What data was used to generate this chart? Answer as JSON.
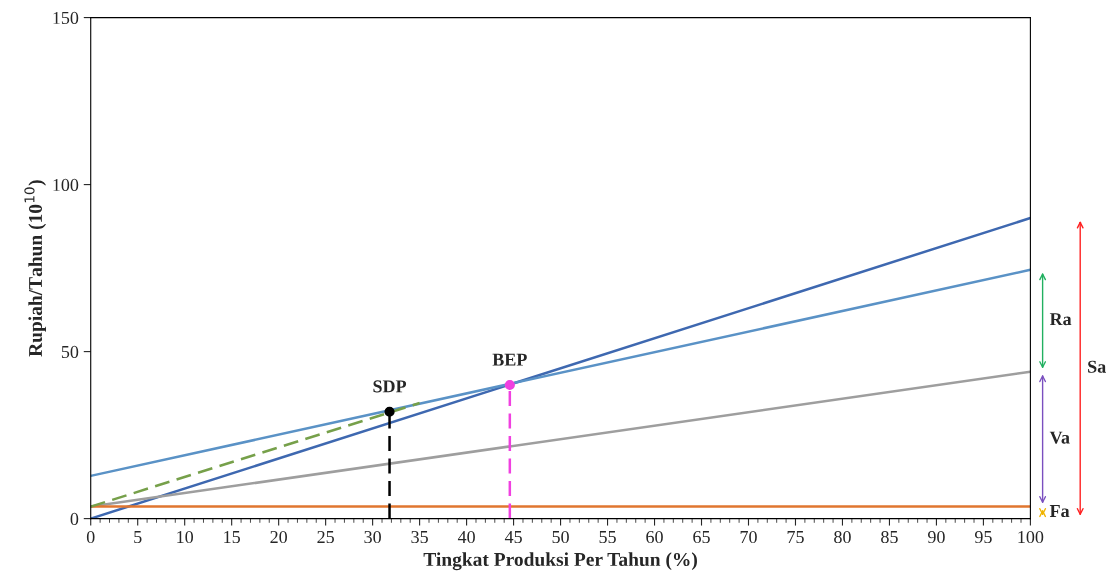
{
  "chart_data": {
    "type": "line",
    "xlabel": "Tingkat Produksi Per Tahun (%)",
    "ylabel": "Rupiah/Tahun (10$^{10}$)",
    "xlim": [
      0,
      100
    ],
    "ylim": [
      0,
      150
    ],
    "xticks": [
      0,
      5,
      10,
      15,
      20,
      25,
      30,
      35,
      40,
      45,
      50,
      55,
      60,
      65,
      70,
      75,
      80,
      85,
      90,
      95,
      100
    ],
    "yticks": [
      0,
      50,
      100,
      150
    ],
    "grid": false,
    "legend": false,
    "series": [
      {
        "color": "#3e68b0",
        "x": [
          0,
          100
        ],
        "values": [
          0,
          90
        ]
      },
      {
        "color": "#5a92c6",
        "x": [
          0,
          100
        ],
        "values": [
          12.8,
          74.5
        ]
      },
      {
        "color": "#9e9e9e",
        "x": [
          0,
          100
        ],
        "values": [
          3.6,
          44
        ]
      },
      {
        "color": "#e0762f",
        "x": [
          0,
          100
        ],
        "values": [
          3.6,
          3.6
        ]
      },
      {
        "color": "#76a04a",
        "line_style": "dashed",
        "x": [
          0,
          35
        ],
        "values": [
          3.6,
          34.6
        ]
      },
      {
        "color": "#000000",
        "line_style": "dashed",
        "x": [
          31.8,
          31.8
        ],
        "values": [
          0,
          32
        ]
      },
      {
        "color": "#f040e0",
        "line_style": "dashed",
        "x": [
          44.6,
          44.6
        ],
        "values": [
          0,
          40
        ]
      },
      {
        "type": "scatter",
        "color": "#000000",
        "marker": "circle",
        "x": [
          31.8
        ],
        "values": [
          32
        ]
      },
      {
        "type": "scatter",
        "color": "#f040e0",
        "marker": "circle",
        "x": [
          44.6
        ],
        "values": [
          40
        ]
      }
    ],
    "annotations": [
      {
        "text": "SDP",
        "x": 31.8,
        "y": 32
      },
      {
        "text": "BEP",
        "x": 44.6,
        "y": 40
      },
      "Ra",
      "Va",
      "Fa",
      "Sa"
    ]
  }
}
